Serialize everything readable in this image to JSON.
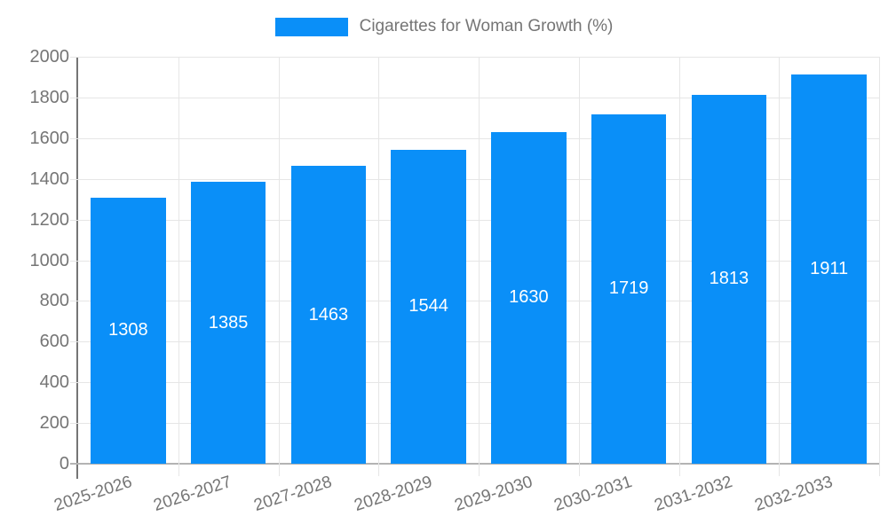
{
  "chart_data": {
    "type": "bar",
    "title": "Cigarettes for Woman Growth (%)",
    "series_name": "Cigarettes for Woman Growth (%)",
    "categories": [
      "2025-2026",
      "2026-2027",
      "2027-2028",
      "2028-2029",
      "2029-2030",
      "2030-2031",
      "2031-2032",
      "2032-2033"
    ],
    "values": [
      1308,
      1385,
      1463,
      1544,
      1630,
      1719,
      1813,
      1911
    ],
    "value_labels": [
      "1308",
      "1385",
      "1463",
      "1544",
      "1630",
      "1719",
      "1813",
      "1911"
    ],
    "xlabel": "",
    "ylabel": "",
    "ylim": [
      0,
      2000
    ],
    "ytick_step": 200,
    "y_tick_labels": [
      "0",
      "200",
      "400",
      "600",
      "800",
      "1000",
      "1200",
      "1400",
      "1600",
      "1800",
      "2000"
    ],
    "legend_position": "top",
    "grid": true,
    "bar_label_position": "center",
    "x_label_rotation_deg": -18,
    "colors": {
      "bar": "#0a8ff8",
      "value_label_text": "#ffffff",
      "axis_text": "#757575",
      "y_axis_line": "#757575",
      "zero_line": "#b3b3b3",
      "gridline": "#e6e6e6",
      "background": "#ffffff"
    }
  }
}
